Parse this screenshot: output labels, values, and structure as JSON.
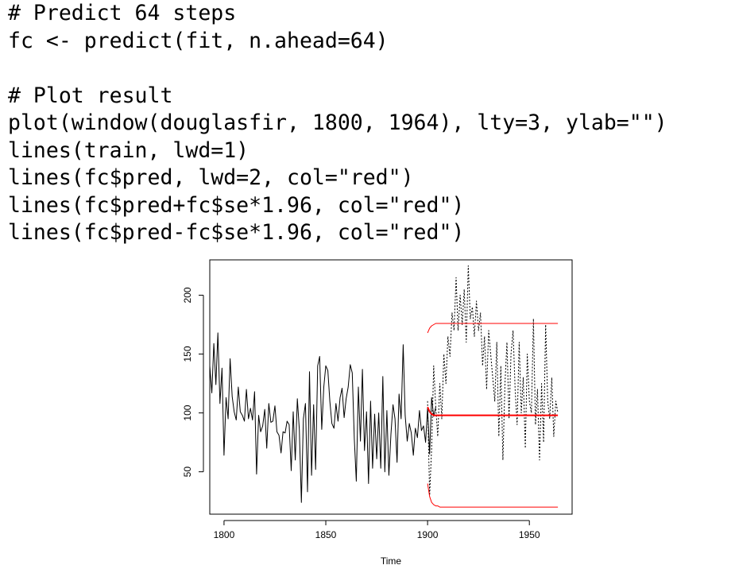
{
  "code": {
    "lines": [
      "# Predict 64 steps",
      "fc <- predict(fit, n.ahead=64)",
      "",
      "# Plot result",
      "plot(window(douglasfir, 1800, 1964), lty=3, ylab=\"\")",
      "lines(train, lwd=1)",
      "lines(fc$pred, lwd=2, col=\"red\")",
      "lines(fc$pred+fc$se*1.96, col=\"red\")",
      "lines(fc$pred-fc$se*1.96, col=\"red\")"
    ]
  },
  "chart_data": {
    "type": "line",
    "xlabel": "Time",
    "ylabel": "",
    "xlim": [
      1793,
      1971
    ],
    "ylim": [
      14,
      230
    ],
    "xticks": [
      1800,
      1850,
      1900,
      1950
    ],
    "yticks": [
      50,
      100,
      150,
      200
    ],
    "grid": false,
    "legend": "none",
    "series": [
      {
        "line_style": "solid",
        "color": "#000000",
        "x_start": 1793,
        "x_step": 1,
        "values": [
          140,
          117,
          159,
          124,
          168,
          108,
          138,
          64,
          113,
          95,
          146,
          114,
          101,
          94,
          122,
          101,
          98,
          93,
          120,
          95,
          104,
          94,
          118,
          48,
          98,
          84,
          89,
          103,
          70,
          108,
          92,
          93,
          106,
          84,
          81,
          66,
          84,
          83,
          93,
          90,
          51,
          101,
          60,
          112,
          86,
          24,
          95,
          108,
          33,
          135,
          47,
          107,
          52,
          140,
          148,
          86,
          122,
          140,
          136,
          110,
          91,
          87,
          108,
          93,
          113,
          121,
          96,
          112,
          122,
          141,
          134,
          78,
          42,
          122,
          76,
          137,
          68,
          101,
          40,
          110,
          53,
          99,
          61,
          100,
          53,
          131,
          50,
          102,
          47,
          82,
          107,
          95,
          58,
          116,
          95,
          158,
          98,
          76,
          91,
          83,
          64,
          87,
          79,
          102,
          85,
          89,
          75,
          104,
          65,
          113,
          97,
          105
        ]
      },
      {
        "line_style": "dotted",
        "color": "#000000",
        "x_start": 1900,
        "x_step": 1,
        "values": [
          110,
          30,
          70,
          140,
          105,
          80,
          125,
          95,
          150,
          125,
          165,
          148,
          185,
          170,
          215,
          170,
          200,
          175,
          205,
          160,
          225,
          180,
          190,
          165,
          195,
          170,
          185,
          140,
          165,
          120,
          170,
          150,
          130,
          110,
          160,
          80,
          140,
          60,
          125,
          160,
          95,
          150,
          170,
          120,
          90,
          160,
          100,
          130,
          70,
          150,
          110,
          100,
          180,
          90,
          120,
          60,
          125,
          75,
          175,
          110,
          95,
          130,
          80,
          110,
          100
        ]
      },
      {
        "line_style": "solid",
        "color": "#ff0000",
        "width": 2,
        "x_start": 1900,
        "x_step": 1,
        "values": [
          105,
          101,
          99,
          98,
          98,
          98,
          98,
          98,
          98,
          98,
          98,
          98,
          98,
          98,
          98,
          98,
          98,
          98,
          98,
          98,
          98,
          98,
          98,
          98,
          98,
          98,
          98,
          98,
          98,
          98,
          98,
          98,
          98,
          98,
          98,
          98,
          98,
          98,
          98,
          98,
          98,
          98,
          98,
          98,
          98,
          98,
          98,
          98,
          98,
          98,
          98,
          98,
          98,
          98,
          98,
          98,
          98,
          98,
          98,
          98,
          98,
          98,
          98,
          98,
          98
        ]
      },
      {
        "line_style": "solid",
        "color": "#ff0000",
        "x_start": 1900,
        "x_step": 1,
        "values": [
          168,
          172,
          174,
          175,
          176,
          176,
          176,
          176,
          176,
          176,
          176,
          176,
          176,
          176,
          176,
          176,
          176,
          176,
          176,
          176,
          176,
          176,
          176,
          176,
          176,
          176,
          176,
          176,
          176,
          176,
          176,
          176,
          176,
          176,
          176,
          176,
          176,
          176,
          176,
          176,
          176,
          176,
          176,
          176,
          176,
          176,
          176,
          176,
          176,
          176,
          176,
          176,
          176,
          176,
          176,
          176,
          176,
          176,
          176,
          176,
          176,
          176,
          176,
          176,
          176
        ]
      },
      {
        "line_style": "solid",
        "color": "#ff0000",
        "x_start": 1900,
        "x_step": 1,
        "values": [
          40,
          29,
          24,
          22,
          21,
          21,
          20,
          20,
          20,
          20,
          20,
          20,
          20,
          20,
          20,
          20,
          20,
          20,
          20,
          20,
          20,
          20,
          20,
          20,
          20,
          20,
          20,
          20,
          20,
          20,
          20,
          20,
          20,
          20,
          20,
          20,
          20,
          20,
          20,
          20,
          20,
          20,
          20,
          20,
          20,
          20,
          20,
          20,
          20,
          20,
          20,
          20,
          20,
          20,
          20,
          20,
          20,
          20,
          20,
          20,
          20,
          20,
          20,
          20,
          20
        ]
      }
    ]
  }
}
